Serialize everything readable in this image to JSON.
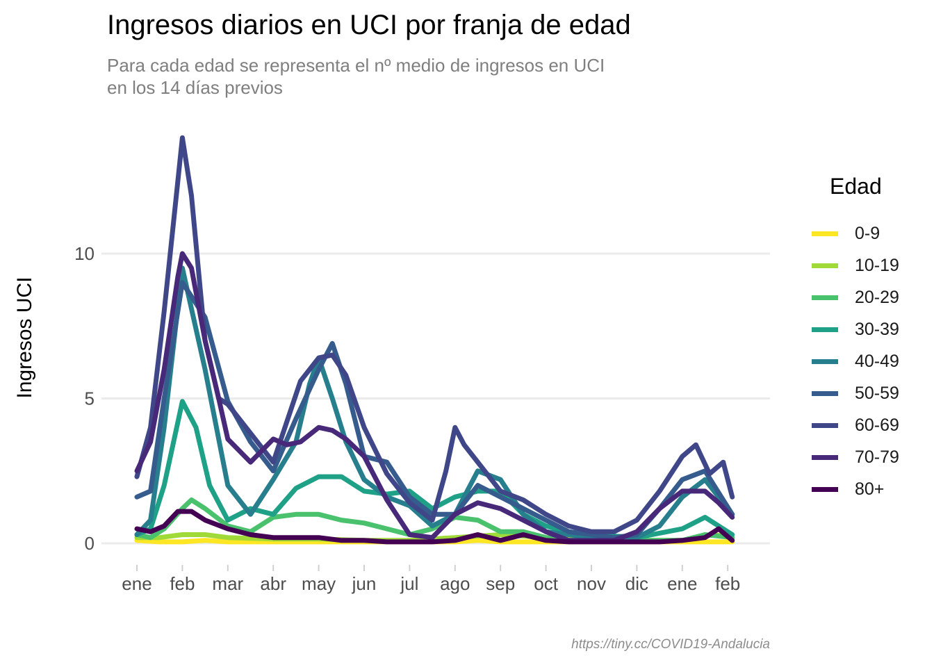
{
  "chart_data": {
    "type": "line",
    "title": "Ingresos diarios en UCI por franja de edad",
    "subtitle": [
      "Para cada edad se representa el nº medio de ingresos en UCI",
      "en los 14 días previos"
    ],
    "xlabel": "",
    "ylabel": "Ingresos UCI",
    "source": "https://tiny.cc/COVID19-Andalucia",
    "legend_title": "Edad",
    "legend_position": "right",
    "grid": true,
    "x_axis": {
      "unit": "month_index",
      "range": [
        0,
        13.2
      ],
      "ticks": [
        0,
        1,
        2,
        3,
        4,
        5,
        6,
        7,
        8,
        9,
        10,
        11,
        12,
        13
      ],
      "tick_labels": [
        "ene",
        "feb",
        "mar",
        "abr",
        "may",
        "jun",
        "jul",
        "ago",
        "sep",
        "oct",
        "nov",
        "dic",
        "ene",
        "feb"
      ]
    },
    "y_axis": {
      "range": [
        -0.6,
        14.2
      ],
      "ticks": [
        0,
        5,
        10
      ],
      "tick_labels": [
        "0",
        "5",
        "10"
      ]
    },
    "series": [
      {
        "name": "0-9",
        "color": "#FDE725",
        "x": [
          0,
          0.5,
          1,
          1.5,
          2,
          3,
          4,
          5,
          6,
          7,
          7.5,
          8,
          9,
          10,
          11,
          12,
          13.1
        ],
        "values": [
          0.1,
          0.05,
          0.05,
          0.1,
          0.05,
          0.05,
          0.05,
          0.05,
          0.05,
          0.05,
          0.1,
          0.05,
          0.05,
          0.05,
          0.05,
          0.05,
          0.05
        ]
      },
      {
        "name": "10-19",
        "color": "#A0DA39",
        "x": [
          0,
          0.5,
          1,
          1.5,
          2,
          3,
          4,
          5,
          6,
          7,
          8,
          9,
          10,
          11,
          12,
          12.7,
          13.1
        ],
        "values": [
          0.2,
          0.2,
          0.3,
          0.3,
          0.2,
          0.15,
          0.15,
          0.1,
          0.1,
          0.2,
          0.3,
          0.2,
          0.1,
          0.1,
          0.1,
          0.3,
          0.2
        ]
      },
      {
        "name": "20-29",
        "color": "#4AC16D",
        "x": [
          0,
          0.3,
          0.6,
          1,
          1.2,
          1.5,
          2,
          2.5,
          3,
          3.5,
          4,
          4.5,
          5,
          5.5,
          6,
          6.5,
          7,
          7.5,
          8,
          8.5,
          9,
          9.5,
          10,
          11,
          12,
          12.5,
          13.1
        ],
        "values": [
          0.3,
          0.2,
          0.5,
          1.2,
          1.5,
          1.2,
          0.6,
          0.4,
          0.9,
          1.0,
          1.0,
          0.8,
          0.7,
          0.5,
          0.3,
          0.5,
          0.9,
          0.8,
          0.4,
          0.4,
          0.2,
          0.1,
          0.1,
          0.1,
          0.1,
          0.3,
          0.2
        ]
      },
      {
        "name": "30-39",
        "color": "#1FA187",
        "x": [
          0,
          0.3,
          0.6,
          1,
          1.3,
          1.6,
          2,
          2.5,
          3,
          3.5,
          4,
          4.5,
          5,
          5.5,
          6,
          6.5,
          7,
          7.5,
          8,
          8.5,
          9,
          9.5,
          10,
          11,
          12,
          12.5,
          13.1
        ],
        "values": [
          0.3,
          0.5,
          2.0,
          4.9,
          4.0,
          2.0,
          0.8,
          1.2,
          1.0,
          1.9,
          2.3,
          2.3,
          1.8,
          1.7,
          1.8,
          1.2,
          1.6,
          1.8,
          1.8,
          1.0,
          0.6,
          0.4,
          0.3,
          0.2,
          0.5,
          0.9,
          0.3
        ]
      },
      {
        "name": "40-49",
        "color": "#277F8E",
        "x": [
          0,
          0.3,
          0.6,
          1,
          1.5,
          2,
          2.5,
          3,
          3.5,
          3.8,
          4,
          4.3,
          4.6,
          5,
          5.5,
          6,
          6.5,
          7,
          7.5,
          8,
          8.5,
          9,
          9.5,
          10,
          11,
          11.5,
          12,
          12.5,
          13.1
        ],
        "values": [
          0.3,
          0.8,
          4.0,
          9.5,
          6.0,
          2.0,
          1.0,
          2.2,
          3.5,
          5.5,
          6.4,
          5.0,
          3.5,
          2.2,
          1.6,
          1.3,
          0.6,
          1.0,
          2.5,
          2.2,
          1.0,
          0.4,
          0.3,
          0.2,
          0.2,
          0.6,
          1.6,
          2.2,
          1.0
        ]
      },
      {
        "name": "50-59",
        "color": "#365C8D",
        "x": [
          0,
          0.3,
          0.6,
          1,
          1.5,
          2,
          2.5,
          3,
          3.5,
          4,
          4.3,
          4.6,
          5,
          5.5,
          6,
          6.5,
          7,
          7.5,
          8,
          8.5,
          9,
          9.5,
          10,
          10.5,
          11,
          11.5,
          12,
          12.5,
          13.1
        ],
        "values": [
          1.6,
          1.8,
          5.0,
          9.0,
          7.8,
          4.9,
          3.5,
          2.5,
          4.3,
          6.0,
          6.9,
          5.5,
          3.0,
          2.8,
          1.6,
          1.0,
          1.0,
          2.0,
          1.6,
          1.2,
          0.8,
          0.4,
          0.3,
          0.2,
          0.3,
          1.2,
          2.2,
          2.5,
          1.0
        ]
      },
      {
        "name": "60-69",
        "color": "#3F4788",
        "x": [
          0,
          0.3,
          0.6,
          0.9,
          1.0,
          1.2,
          1.5,
          1.8,
          2,
          2.5,
          3,
          3.3,
          3.6,
          4,
          4.3,
          4.6,
          5,
          5.5,
          6,
          6.5,
          6.8,
          7,
          7.2,
          7.5,
          8,
          8.5,
          9,
          9.5,
          10,
          10.5,
          11,
          11.5,
          12,
          12.3,
          12.6,
          12.9,
          13.1
        ],
        "values": [
          2.3,
          4.0,
          8.0,
          12.5,
          14.0,
          12.0,
          7.0,
          5.0,
          4.8,
          3.8,
          2.8,
          4.2,
          5.6,
          6.4,
          6.5,
          5.8,
          4.0,
          2.4,
          1.4,
          0.8,
          2.5,
          4.0,
          3.4,
          2.8,
          1.8,
          1.5,
          1.0,
          0.6,
          0.4,
          0.4,
          0.8,
          1.8,
          3.0,
          3.4,
          2.4,
          2.8,
          1.6
        ]
      },
      {
        "name": "70-79",
        "color": "#482878",
        "x": [
          0,
          0.3,
          0.6,
          0.9,
          1.0,
          1.2,
          1.5,
          1.8,
          2,
          2.5,
          3,
          3.3,
          3.6,
          4,
          4.3,
          4.6,
          5,
          5.5,
          6,
          6.5,
          7,
          7.5,
          8,
          8.5,
          9,
          9.5,
          10,
          10.5,
          11,
          11.5,
          12,
          12.5,
          12.8,
          13.1
        ],
        "values": [
          2.5,
          3.5,
          6.0,
          9.2,
          10.0,
          9.5,
          7.0,
          5.0,
          3.6,
          2.8,
          3.6,
          3.4,
          3.5,
          4.0,
          3.9,
          3.6,
          3.0,
          1.5,
          0.3,
          0.2,
          1.0,
          1.4,
          1.2,
          0.8,
          0.4,
          0.1,
          0.1,
          0.1,
          0.4,
          1.2,
          1.8,
          1.8,
          1.4,
          0.9
        ]
      },
      {
        "name": "80+",
        "color": "#440154",
        "x": [
          0,
          0.3,
          0.6,
          0.9,
          1.2,
          1.5,
          2,
          2.5,
          3,
          3.5,
          4,
          4.5,
          5,
          5.5,
          6,
          6.5,
          7,
          7.5,
          8,
          8.5,
          9,
          9.5,
          10,
          10.5,
          11,
          11.5,
          12,
          12.5,
          12.8,
          13.1
        ],
        "values": [
          0.5,
          0.4,
          0.6,
          1.1,
          1.1,
          0.8,
          0.5,
          0.3,
          0.2,
          0.2,
          0.2,
          0.1,
          0.1,
          0.05,
          0.05,
          0.05,
          0.1,
          0.3,
          0.1,
          0.3,
          0.1,
          0.05,
          0.05,
          0.05,
          0.05,
          0.05,
          0.1,
          0.2,
          0.5,
          0.1
        ]
      }
    ]
  }
}
